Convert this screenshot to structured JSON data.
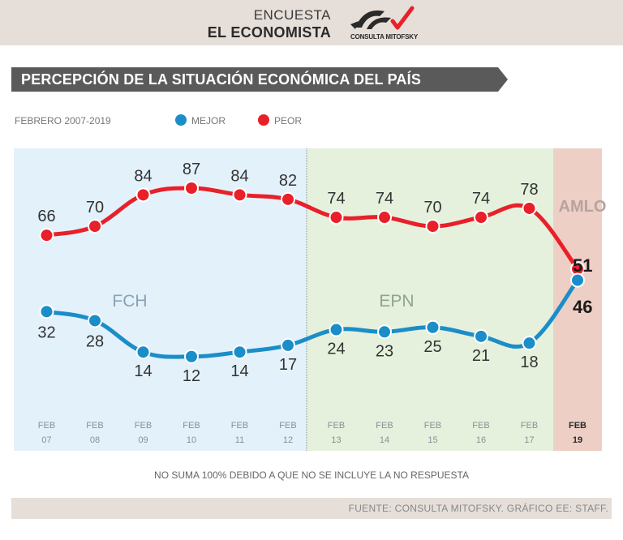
{
  "header": {
    "line1": "ENCUESTA",
    "line2": "EL ECONOMISTA",
    "logo_text": "CONSULTA MITOFSKY"
  },
  "title": "PERCEPCIÓN DE LA SITUACIÓN ECONÓMICA DEL PAÍS",
  "subtitle": "FEBRERO 2007-2019",
  "legend": [
    {
      "label": "MEJOR",
      "color": "#1b8dc8"
    },
    {
      "label": "PEOR",
      "color": "#e8202a"
    }
  ],
  "chart_data": {
    "type": "line",
    "title": "PERCEPCIÓN DE LA SITUACIÓN ECONÓMICA DEL PAÍS",
    "categories": [
      {
        "line1": "FEB",
        "line2": "07"
      },
      {
        "line1": "FEB",
        "line2": "08"
      },
      {
        "line1": "FEB",
        "line2": "09"
      },
      {
        "line1": "FEB",
        "line2": "10"
      },
      {
        "line1": "FEB",
        "line2": "11"
      },
      {
        "line1": "FEB",
        "line2": "12"
      },
      {
        "line1": "FEB",
        "line2": "13"
      },
      {
        "line1": "FEB",
        "line2": "14"
      },
      {
        "line1": "FEB",
        "line2": "15"
      },
      {
        "line1": "FEB",
        "line2": "16"
      },
      {
        "line1": "FEB",
        "line2": "17"
      },
      {
        "line1": "FEB",
        "line2": "19"
      }
    ],
    "series": [
      {
        "name": "PEOR",
        "color": "#e8202a",
        "values": [
          66,
          70,
          84,
          87,
          84,
          82,
          74,
          74,
          70,
          74,
          78,
          51
        ]
      },
      {
        "name": "MEJOR",
        "color": "#1b8dc8",
        "values": [
          32,
          28,
          14,
          12,
          14,
          17,
          24,
          23,
          25,
          21,
          18,
          46
        ]
      }
    ],
    "periods": [
      {
        "label": "FCH",
        "start": 0,
        "end": 5,
        "color": "#e3f1fb",
        "label_color": "#8aa2b6"
      },
      {
        "label": "EPN",
        "start": 6,
        "end": 10,
        "color": "#e5f1dc",
        "label_color": "#8fa58a"
      },
      {
        "label": "AMLO",
        "start": 11,
        "end": 11,
        "color": "#eecfc5",
        "label_color": "#b5a3a0"
      }
    ],
    "ylim": [
      0,
      100
    ],
    "xlabel": "",
    "ylabel": ""
  },
  "note": "NO SUMA 100% DEBIDO A QUE NO SE INCLUYE LA NO RESPUESTA",
  "source": "FUENTE: CONSULTA MITOFSKY.  GRÁFICO EE: STAFF."
}
